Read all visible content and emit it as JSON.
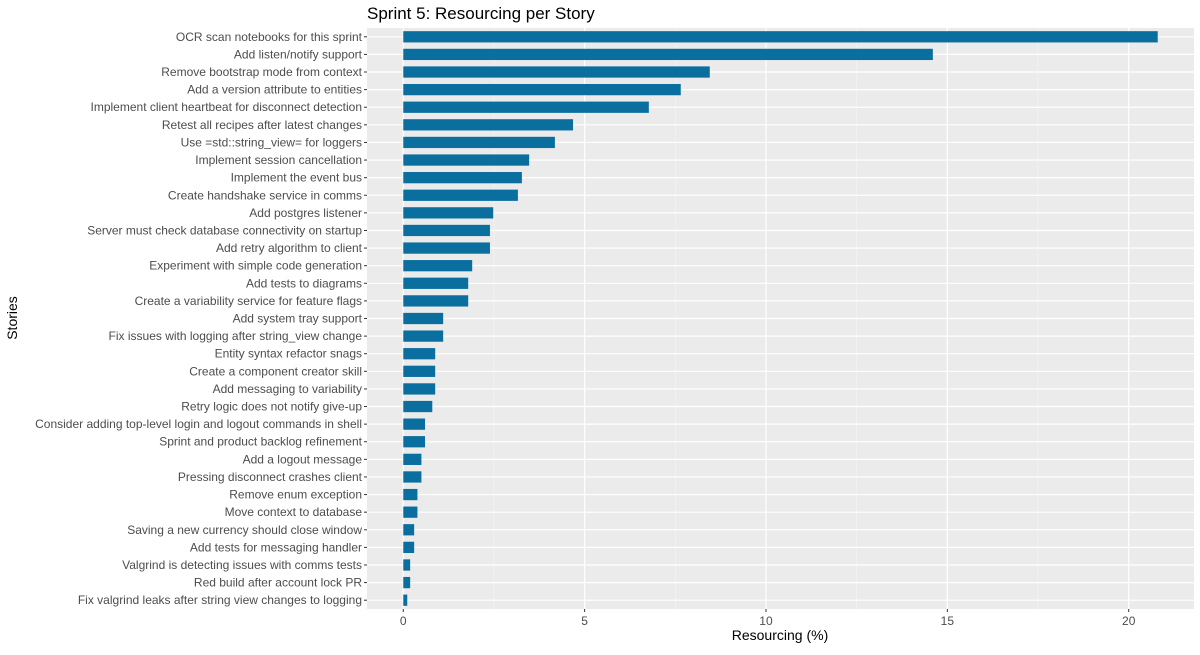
{
  "chart_data": {
    "type": "bar",
    "orientation": "horizontal",
    "title": "Sprint 5: Resourcing per Story",
    "xlabel": "Resourcing (%)",
    "ylabel": "Stories",
    "xlim": [
      -1.0,
      21.8
    ],
    "xticks": [
      0,
      5,
      10,
      15,
      20
    ],
    "grid": true,
    "legend": "none",
    "colors": {
      "bar": "#0a6e9f",
      "panel": "#ebebeb",
      "grid": "#ffffff"
    },
    "categories": [
      "OCR scan notebooks for this sprint",
      "Add listen/notify support",
      "Remove bootstrap mode from context",
      "Add a version attribute to entities",
      "Implement client heartbeat for disconnect detection",
      "Retest all recipes after latest changes",
      "Use =std::string_view= for loggers",
      "Implement session cancellation",
      "Implement the event bus",
      "Create handshake service in comms",
      "Add postgres listener",
      "Server must check database connectivity on startup",
      "Add retry algorithm to client",
      "Experiment with simple code generation",
      "Add tests to diagrams",
      "Create a variability service for feature flags",
      "Add system tray support",
      "Fix issues with logging after string_view change",
      "Entity syntax refactor snags",
      "Create a component creator skill",
      "Add messaging to variability",
      "Retry logic does not notify give-up",
      "Consider adding top-level login and logout commands in shell",
      "Sprint and product backlog refinement",
      "Add a logout message",
      "Pressing disconnect crashes client",
      "Remove enum exception",
      "Move context to database",
      "Saving a new currency should close window",
      "Add tests for messaging handler",
      "Valgrind is detecting issues with comms tests",
      "Red build after account lock PR",
      "Fix valgrind leaks after string view changes to logging"
    ],
    "values": [
      20.8,
      14.6,
      8.45,
      7.65,
      6.77,
      4.68,
      4.18,
      3.47,
      3.27,
      3.16,
      2.48,
      2.39,
      2.39,
      1.9,
      1.79,
      1.79,
      1.1,
      1.1,
      0.88,
      0.88,
      0.88,
      0.8,
      0.6,
      0.6,
      0.5,
      0.5,
      0.39,
      0.39,
      0.3,
      0.3,
      0.19,
      0.19,
      0.11
    ]
  }
}
